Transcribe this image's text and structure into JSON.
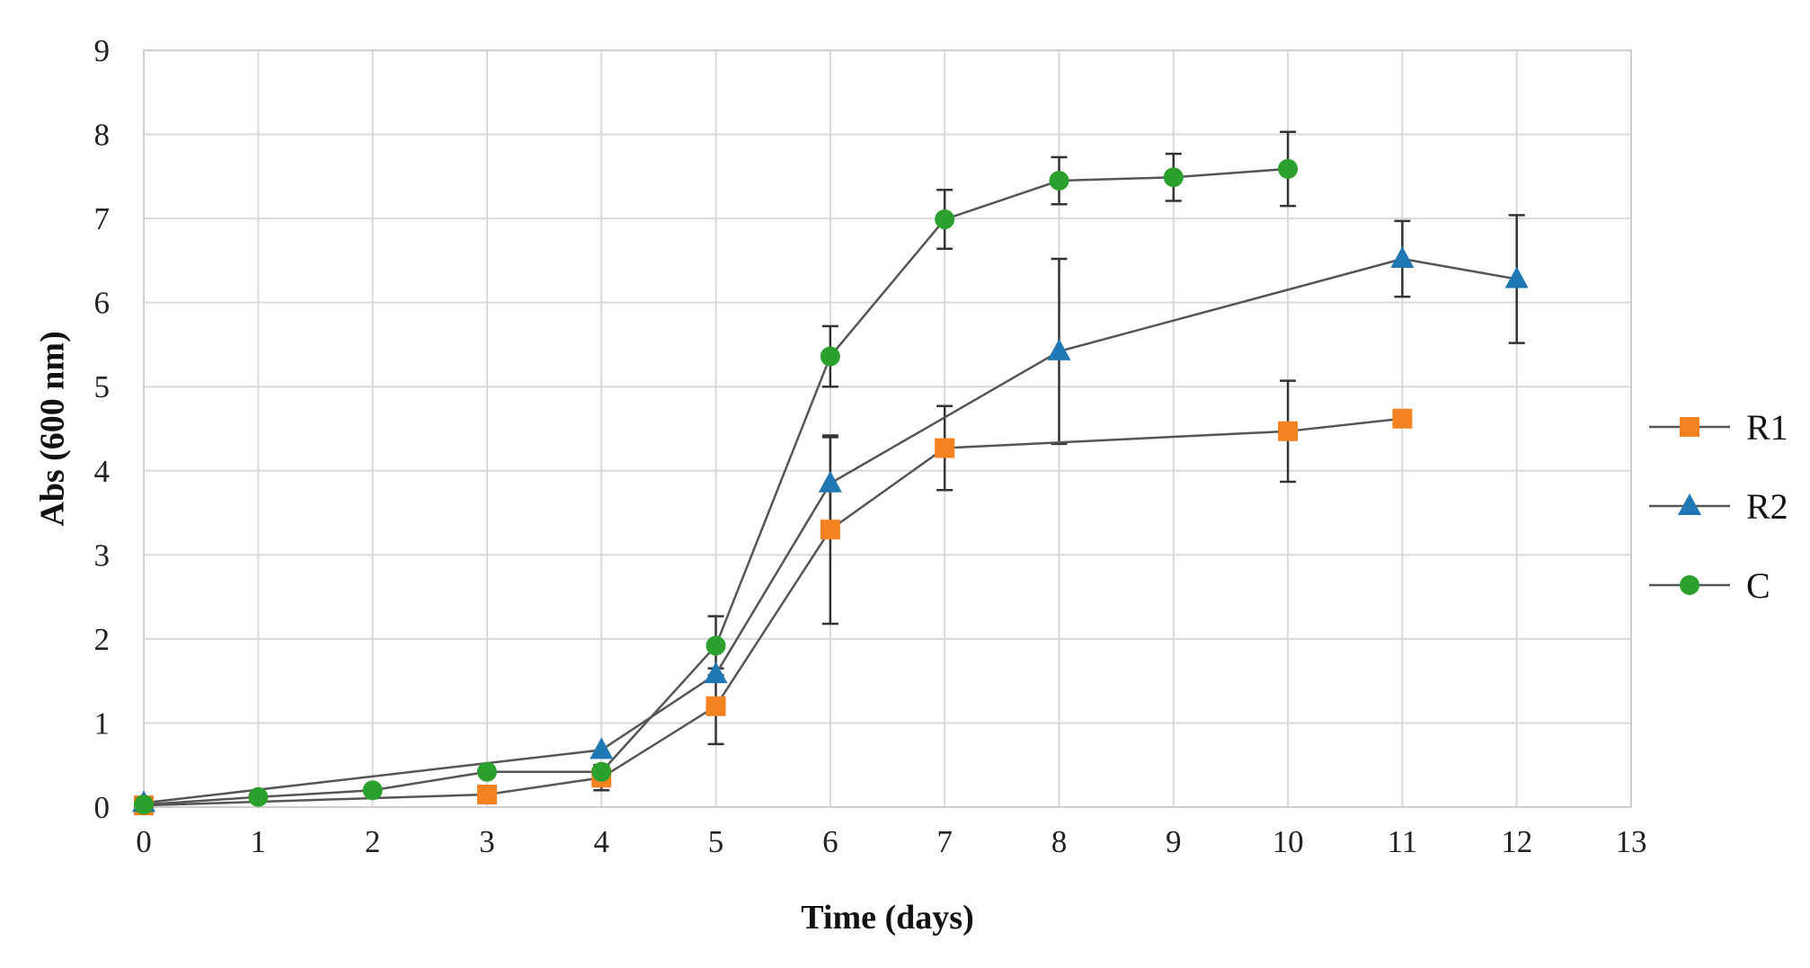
{
  "chart_data": {
    "type": "line",
    "title": "",
    "xlabel": "Time (days)",
    "ylabel": "Abs (600 nm)",
    "xlim": [
      0,
      13
    ],
    "ylim": [
      0,
      9
    ],
    "xticks": [
      0,
      1,
      2,
      3,
      4,
      5,
      6,
      7,
      8,
      9,
      10,
      11,
      12,
      13
    ],
    "yticks": [
      0,
      1,
      2,
      3,
      4,
      5,
      6,
      7,
      8,
      9
    ],
    "grid": true,
    "legend_position": "right",
    "series": [
      {
        "name": "R1",
        "marker": "square",
        "color": "#f58220",
        "x": [
          0,
          3,
          4,
          5,
          6,
          7,
          10,
          11
        ],
        "y": [
          0.02,
          0.15,
          0.35,
          1.2,
          3.3,
          4.27,
          4.47,
          4.62
        ],
        "err": [
          0,
          0,
          0.15,
          0.45,
          1.12,
          0.5,
          0.6,
          0
        ]
      },
      {
        "name": "R2",
        "marker": "triangle",
        "color": "#1f77b4",
        "x": [
          0,
          4,
          5,
          6,
          8,
          11,
          12
        ],
        "y": [
          0.05,
          0.68,
          1.58,
          3.85,
          5.42,
          6.52,
          6.28
        ],
        "err": [
          0,
          0,
          0,
          0.55,
          1.1,
          0.45,
          0.76
        ]
      },
      {
        "name": "C",
        "marker": "circle",
        "color": "#2ca02c",
        "x": [
          0,
          1,
          2,
          3,
          4,
          5,
          6,
          7,
          8,
          9,
          10
        ],
        "y": [
          0.03,
          0.12,
          0.2,
          0.42,
          0.42,
          1.92,
          5.36,
          6.99,
          7.45,
          7.49,
          7.59
        ],
        "err": [
          0,
          0,
          0,
          0,
          0,
          0.35,
          0.36,
          0.35,
          0.28,
          0.28,
          0.44
        ]
      }
    ]
  }
}
